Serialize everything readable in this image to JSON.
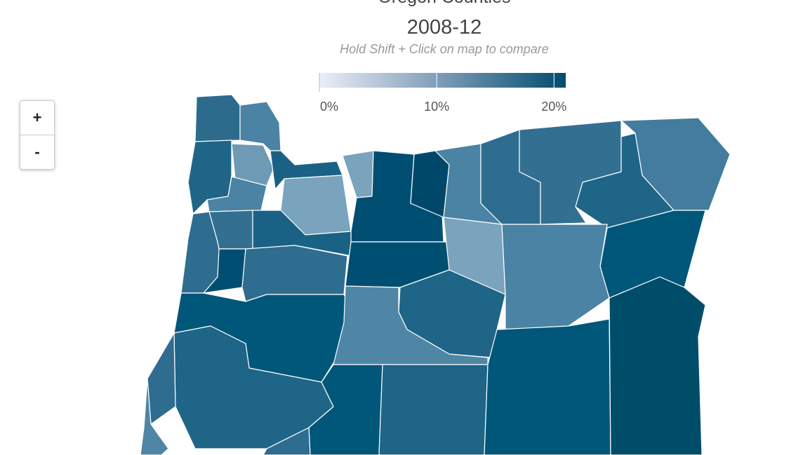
{
  "title": "Oregon Counties",
  "period": "2008-12",
  "subtitle": "Hold Shift + Click on map to compare",
  "legend": {
    "range": [
      0,
      21
    ],
    "ticks": [
      {
        "value": 0,
        "label": "0%"
      },
      {
        "value": 10,
        "label": "10%"
      },
      {
        "value": 20,
        "label": "20%"
      }
    ]
  },
  "zoom": {
    "in": "+",
    "out": "-"
  }
}
